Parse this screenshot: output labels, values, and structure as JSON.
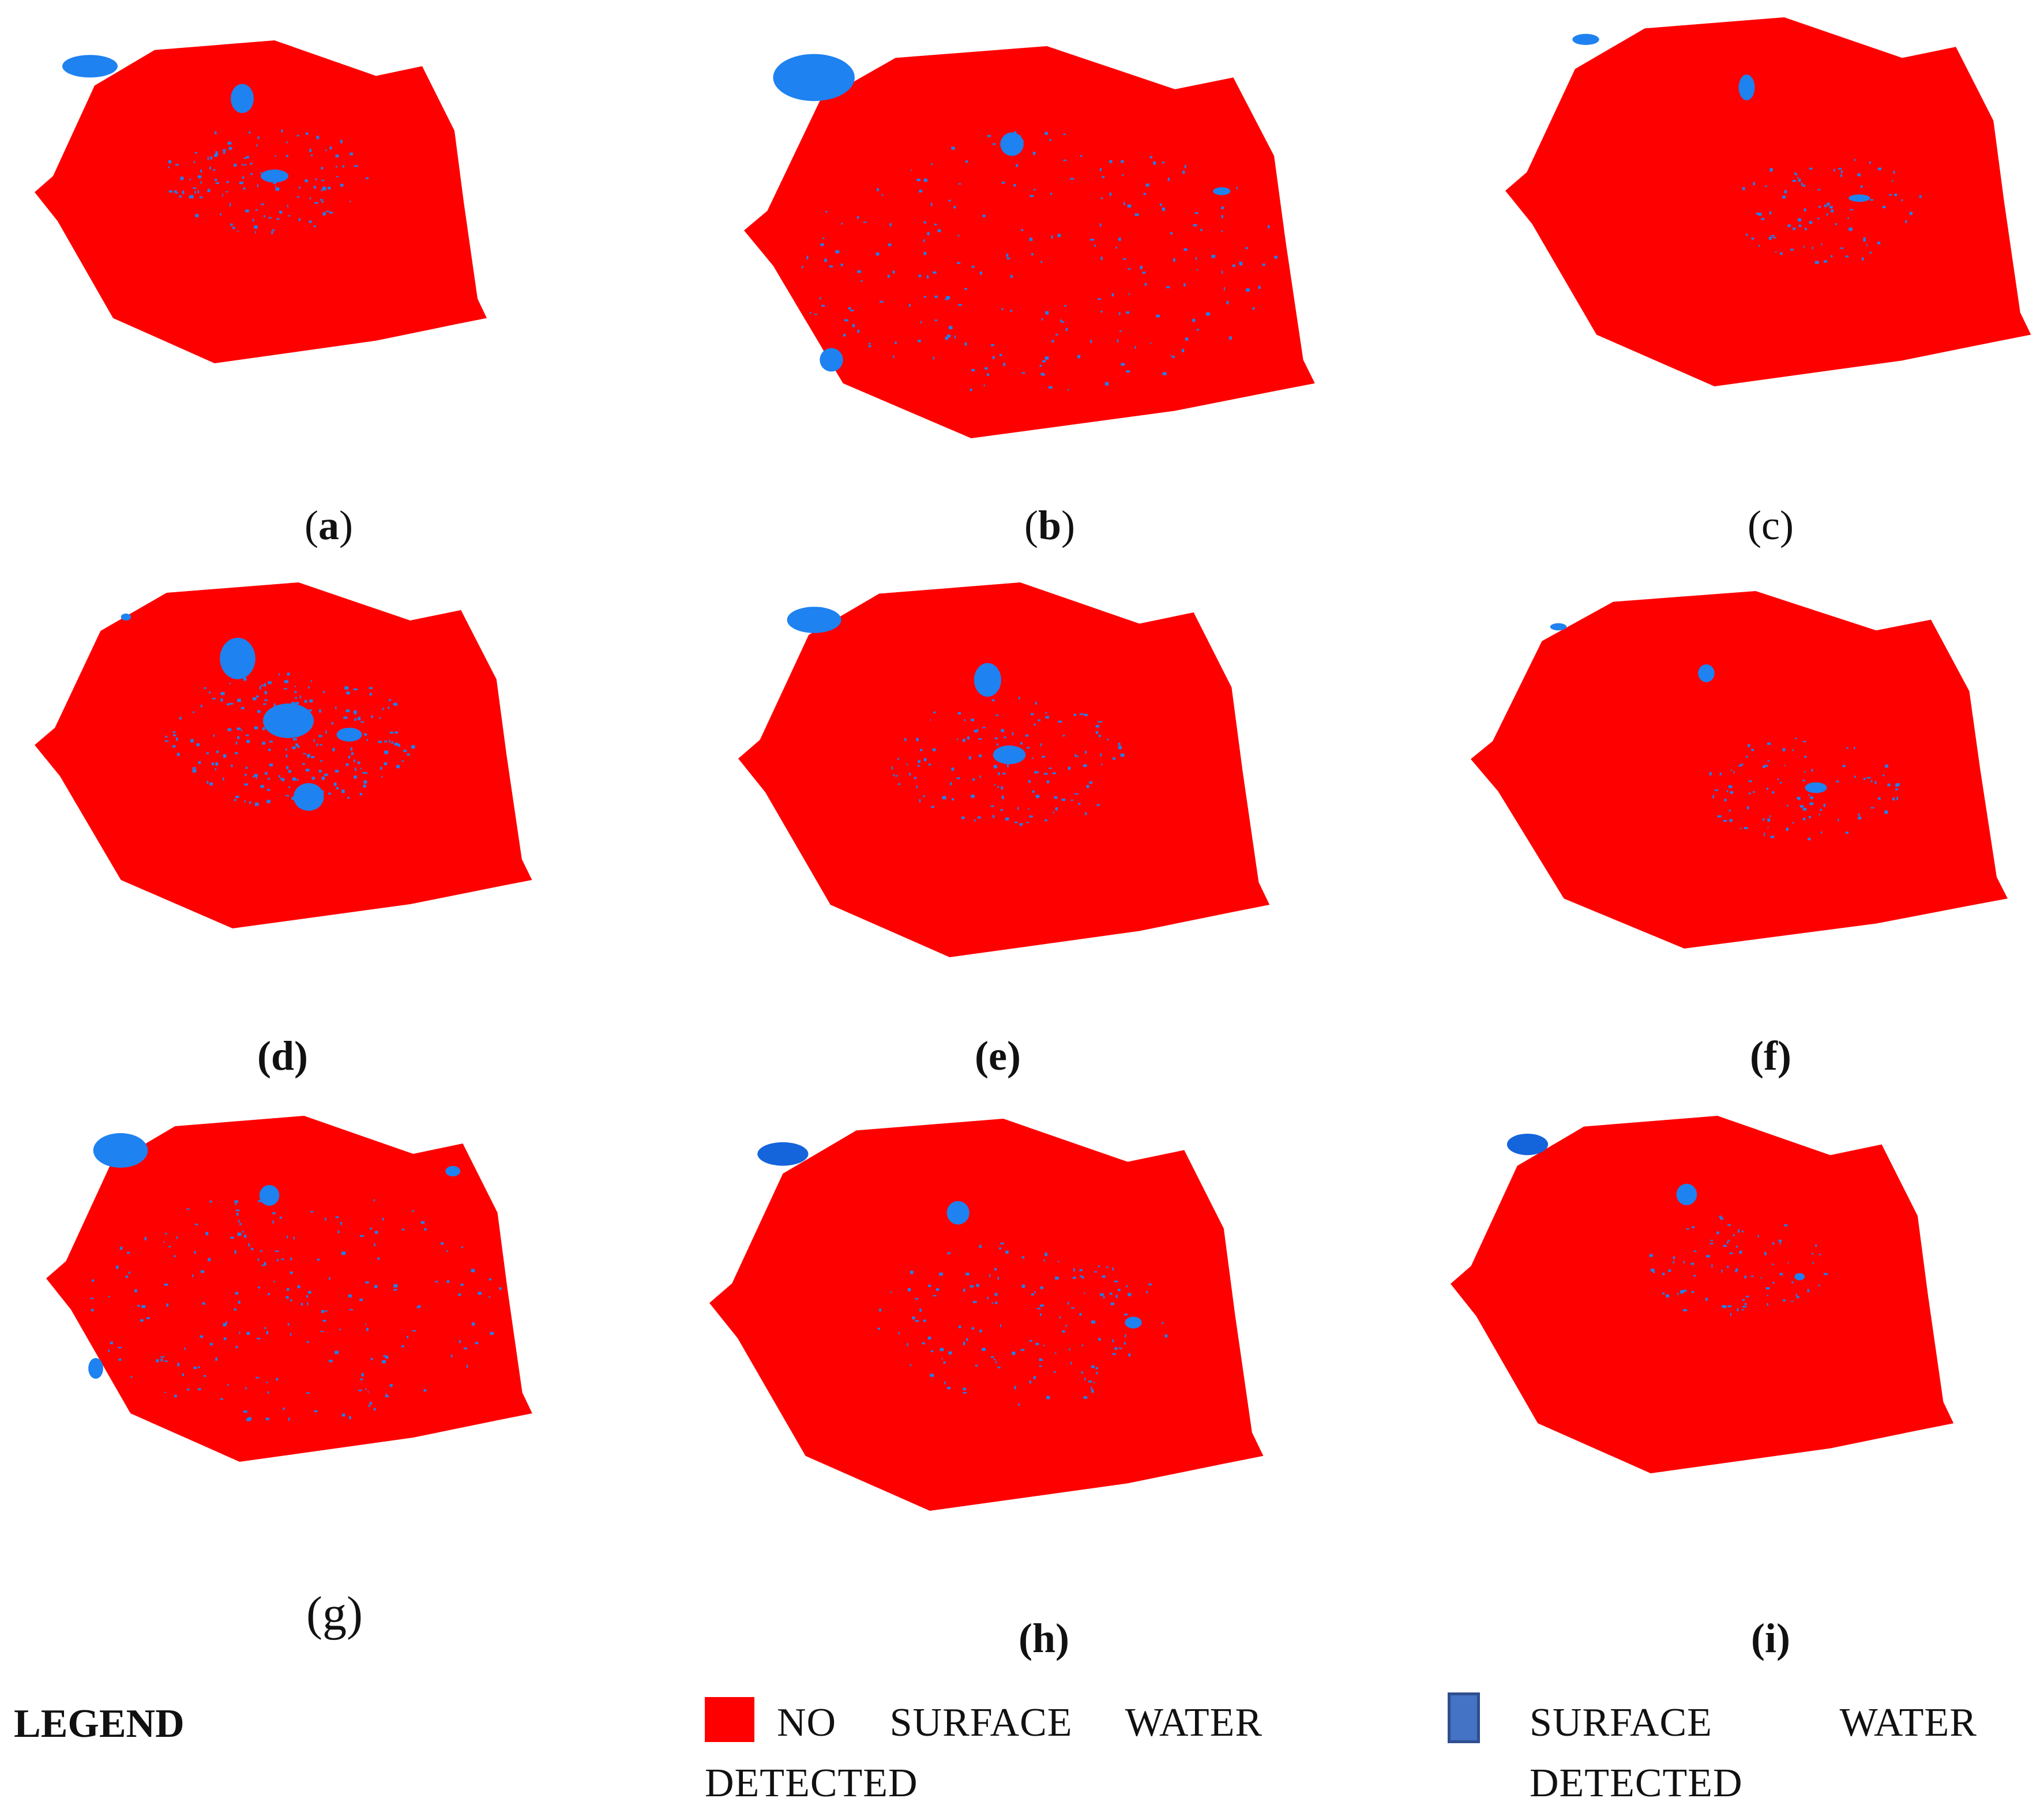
{
  "colors": {
    "no_water": "#ff0000",
    "water": "#1e82f0",
    "water_dark": "#1464dc",
    "legend_water": "#4472c4",
    "legend_water_border": "#2f4f8f"
  },
  "panels": [
    {
      "id": "a",
      "caption_open": "(",
      "caption_letter": "a",
      "caption_close": ")",
      "style": "mixed"
    },
    {
      "id": "b",
      "caption_open": "(",
      "caption_letter": "b",
      "caption_close": ")",
      "style": "mixed"
    },
    {
      "id": "c",
      "caption_open": "(",
      "caption_letter": "c",
      "caption_close": ")",
      "style": "plain"
    },
    {
      "id": "d",
      "caption_open": "(",
      "caption_letter": "d",
      "caption_close": ")",
      "style": "bold"
    },
    {
      "id": "e",
      "caption_open": "(",
      "caption_letter": "e",
      "caption_close": ")",
      "style": "bold"
    },
    {
      "id": "f",
      "caption_open": "(",
      "caption_letter": "f",
      "caption_close": ")",
      "style": "bold"
    },
    {
      "id": "g",
      "caption_open": "(",
      "caption_letter": "g",
      "caption_close": ")",
      "style": "plain"
    },
    {
      "id": "h",
      "caption_open": "(",
      "caption_letter": "h",
      "caption_close": ")",
      "style": "bold"
    },
    {
      "id": "i",
      "caption_open": "(",
      "caption_letter": "i",
      "caption_close": ")",
      "style": "bold"
    }
  ],
  "legend": {
    "title": "LEGEND",
    "no_water_line1": "NO     SURFACE     WATER",
    "no_water_line2": "DETECTED",
    "water_line1": "SURFACE            WATER",
    "water_line2": "DETECTED"
  }
}
